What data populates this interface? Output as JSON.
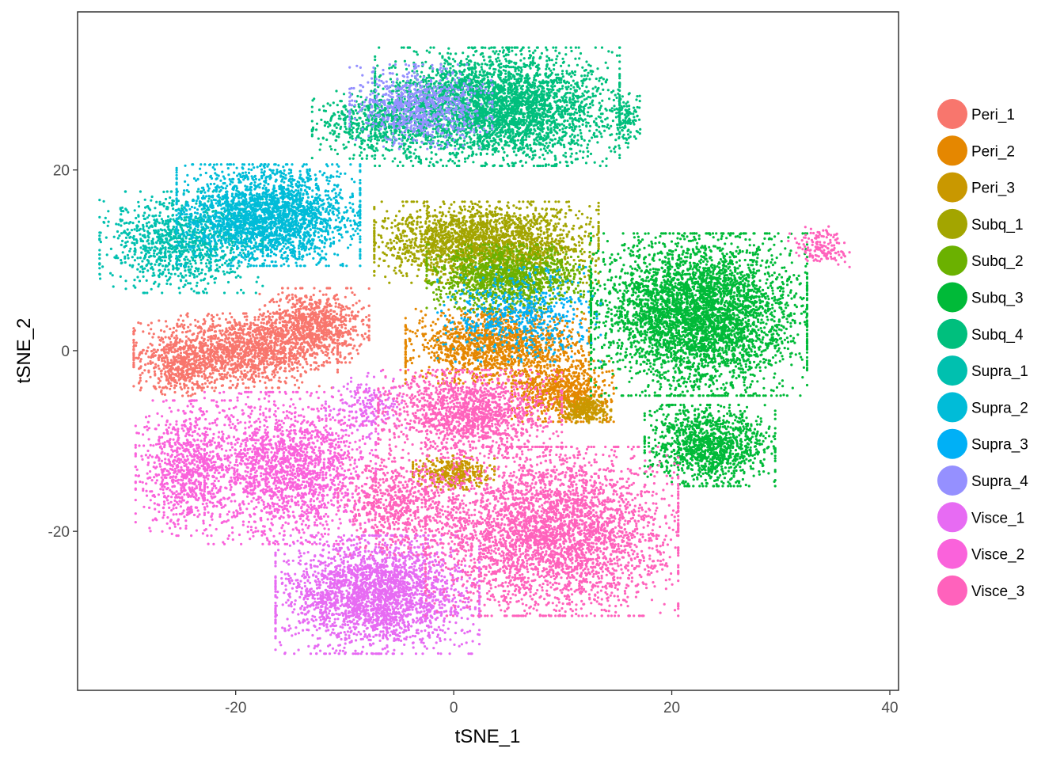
{
  "chart_data": {
    "type": "scatter",
    "title": "",
    "xlabel": "tSNE_1",
    "ylabel": "tSNE_2",
    "xlim": [
      -34.5,
      40.8
    ],
    "ylim": [
      -37.6,
      37.5
    ],
    "x_ticks": [
      -20,
      0,
      20,
      40
    ],
    "y_ticks": [
      -20,
      0,
      20
    ],
    "x_tick_labels": [
      "-20",
      "0",
      "20",
      "40"
    ],
    "y_tick_labels": [
      "-20",
      "0",
      "20"
    ],
    "grid": false,
    "legend_position": "right",
    "series": [
      {
        "name": "Peri_1",
        "color": "#F8766D",
        "clusters": [
          {
            "cx": -20,
            "cy": 0,
            "sx": 5,
            "sy": 2.2,
            "n": 1500
          },
          {
            "cx": -13,
            "cy": 2.8,
            "sx": 2.8,
            "sy": 2.2,
            "n": 900
          },
          {
            "cx": -25,
            "cy": -2.2,
            "sx": 2,
            "sy": 1.5,
            "n": 300
          }
        ]
      },
      {
        "name": "Peri_2",
        "color": "#E58700",
        "clusters": [
          {
            "cx": 4,
            "cy": 0.5,
            "sx": 4.5,
            "sy": 2.2,
            "n": 1500
          },
          {
            "cx": 10,
            "cy": -4.5,
            "sx": 2.5,
            "sy": 1.8,
            "n": 700
          }
        ]
      },
      {
        "name": "Peri_3",
        "color": "#C99800",
        "clusters": [
          {
            "cx": 0,
            "cy": -13.5,
            "sx": 2,
            "sy": 1,
            "n": 350
          },
          {
            "cx": 12,
            "cy": -6.5,
            "sx": 1.3,
            "sy": 0.8,
            "n": 250
          }
        ]
      },
      {
        "name": "Subq_1",
        "color": "#A3A500",
        "clusters": [
          {
            "cx": 3,
            "cy": 12,
            "sx": 5.5,
            "sy": 2.4,
            "n": 2200
          }
        ]
      },
      {
        "name": "Subq_2",
        "color": "#6BB100",
        "clusters": [
          {
            "cx": 5,
            "cy": 8,
            "sx": 4,
            "sy": 2,
            "n": 1300
          }
        ]
      },
      {
        "name": "Subq_3",
        "color": "#00BA38",
        "clusters": [
          {
            "cx": 22.5,
            "cy": 4,
            "sx": 5.3,
            "sy": 4.8,
            "n": 4200
          },
          {
            "cx": 23.5,
            "cy": -10.5,
            "sx": 3.2,
            "sy": 2.4,
            "n": 1200
          }
        ]
      },
      {
        "name": "Subq_4",
        "color": "#00BF7D",
        "clusters": [
          {
            "cx": 4,
            "cy": 27,
            "sx": 6,
            "sy": 3.5,
            "n": 3500
          },
          {
            "cx": -7,
            "cy": 25,
            "sx": 3.2,
            "sy": 2,
            "n": 600
          },
          {
            "cx": 15.8,
            "cy": 25.5,
            "sx": 0.7,
            "sy": 1.6,
            "n": 120
          }
        ]
      },
      {
        "name": "Supra_1",
        "color": "#00C0AF",
        "clusters": [
          {
            "cx": -25,
            "cy": 12,
            "sx": 4,
            "sy": 3,
            "n": 1100
          }
        ]
      },
      {
        "name": "Supra_2",
        "color": "#00BCD8",
        "clusters": [
          {
            "cx": -17,
            "cy": 15,
            "sx": 4.5,
            "sy": 3,
            "n": 2500
          }
        ]
      },
      {
        "name": "Supra_3",
        "color": "#00B0F6",
        "clusters": [
          {
            "cx": 6,
            "cy": 4,
            "sx": 4,
            "sy": 2.8,
            "n": 600
          }
        ]
      },
      {
        "name": "Supra_4",
        "color": "#9590FF",
        "clusters": [
          {
            "cx": -3,
            "cy": 27,
            "sx": 3.5,
            "sy": 2.5,
            "n": 800
          }
        ]
      },
      {
        "name": "Visce_1",
        "color": "#E76BF3",
        "clusters": [
          {
            "cx": -7,
            "cy": -27,
            "sx": 5,
            "sy": 3.5,
            "n": 2600
          },
          {
            "cx": -8,
            "cy": -6,
            "sx": 2,
            "sy": 2,
            "n": 200
          }
        ]
      },
      {
        "name": "Visce_2",
        "color": "#FA62DB",
        "clusters": [
          {
            "cx": -15,
            "cy": -13,
            "sx": 4.2,
            "sy": 4.5,
            "n": 1800
          },
          {
            "cx": -24.5,
            "cy": -13,
            "sx": 2.5,
            "sy": 4,
            "n": 900
          }
        ]
      },
      {
        "name": "Visce_3",
        "color": "#FF62BC",
        "clusters": [
          {
            "cx": 9,
            "cy": -20,
            "sx": 6.2,
            "sy": 5,
            "n": 3600
          },
          {
            "cx": 1.5,
            "cy": -7,
            "sx": 4.5,
            "sy": 2.6,
            "n": 1400
          },
          {
            "cx": -5,
            "cy": -17,
            "sx": 3,
            "sy": 3,
            "n": 700
          },
          {
            "cx": 33.5,
            "cy": 11.5,
            "sx": 1.5,
            "sy": 1.2,
            "n": 150
          }
        ]
      }
    ]
  }
}
